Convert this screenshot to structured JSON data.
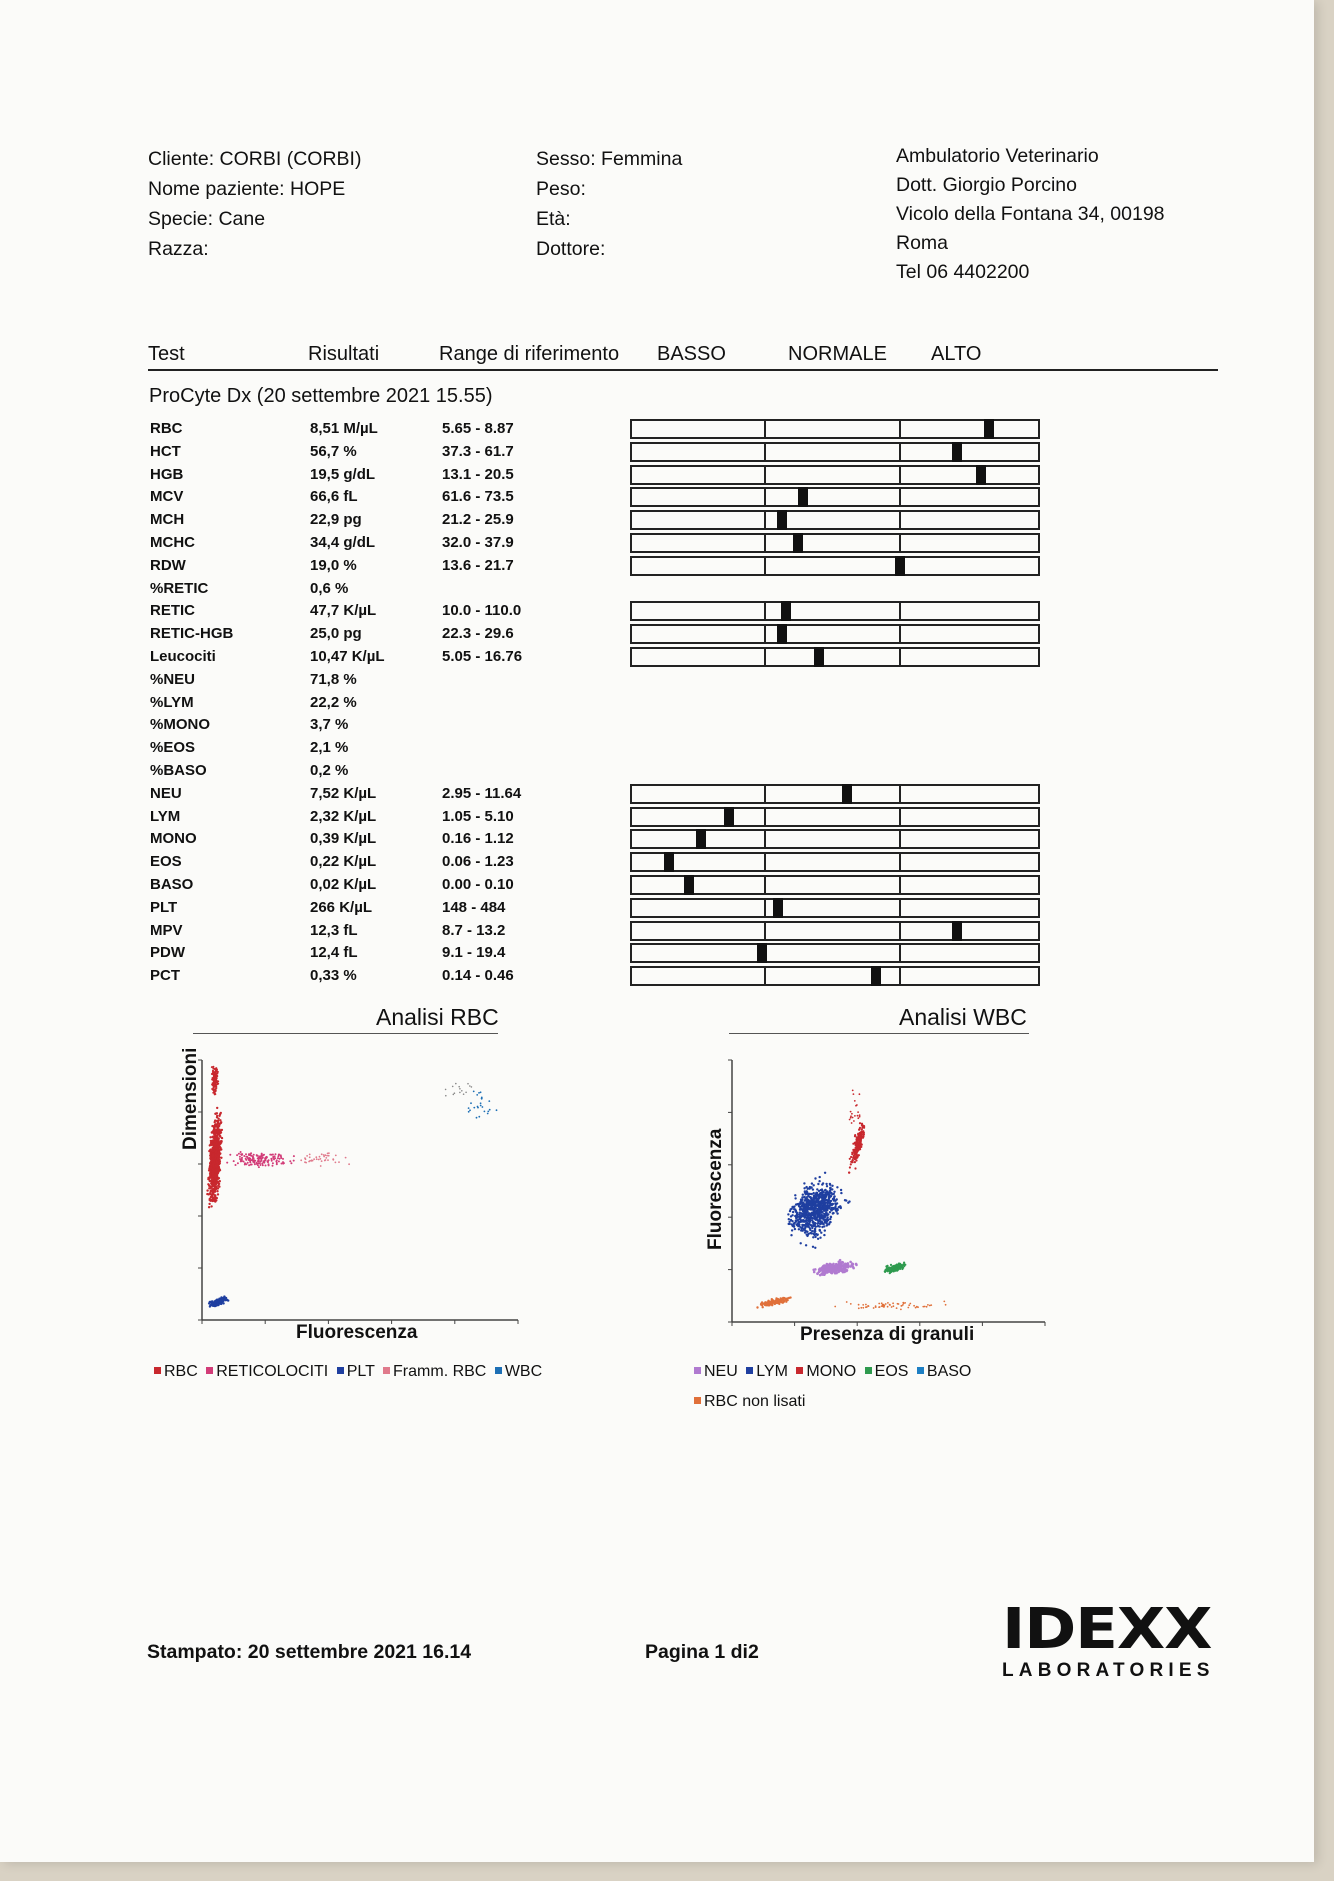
{
  "header": {
    "left": [
      "Cliente: CORBI (CORBI)",
      "Nome paziente: HOPE",
      "Specie: Cane",
      "Razza:"
    ],
    "middle": [
      "Sesso: Femmina",
      "Peso:",
      "Età:",
      "Dottore:"
    ],
    "right": [
      "Ambulatorio Veterinario",
      "Dott. Giorgio Porcino",
      "Vicolo della Fontana 34, 00198",
      "Roma",
      "Tel 06 4402200"
    ]
  },
  "table": {
    "columns": [
      "Test",
      "Risultati",
      "Range di riferimento",
      "BASSO",
      "NORMALE",
      "ALTO"
    ],
    "section_title": "ProCyte Dx (20 settembre 2021 15.55)",
    "rows": [
      {
        "test": "RBC",
        "result": "8,51 M/µL",
        "range": "5.65 - 8.87",
        "marker": 0.88
      },
      {
        "test": "HCT",
        "result": "56,7 %",
        "range": "37.3 - 61.7",
        "marker": 0.8
      },
      {
        "test": "HGB",
        "result": "19,5 g/dL",
        "range": "13.1 - 20.5",
        "marker": 0.86
      },
      {
        "test": "MCV",
        "result": "66,6 fL",
        "range": "61.6 - 73.5",
        "marker": 0.42
      },
      {
        "test": "MCH",
        "result": "22,9 pg",
        "range": "21.2 - 25.9",
        "marker": 0.37
      },
      {
        "test": "MCHC",
        "result": "34,4 g/dL",
        "range": "32.0 - 37.9",
        "marker": 0.41
      },
      {
        "test": "RDW",
        "result": "19,0 %",
        "range": "13.6 - 21.7",
        "marker": 0.66
      },
      {
        "test": "%RETIC",
        "result": "0,6 %",
        "range": "",
        "marker": null
      },
      {
        "test": "RETIC",
        "result": "47,7 K/µL",
        "range": "10.0 - 110.0",
        "marker": 0.38
      },
      {
        "test": "RETIC-HGB",
        "result": "25,0 pg",
        "range": "22.3 - 29.6",
        "marker": 0.37
      },
      {
        "test": "Leucociti",
        "result": "10,47 K/µL",
        "range": "5.05 - 16.76",
        "marker": 0.46
      },
      {
        "test": "%NEU",
        "result": "71,8 %",
        "range": "",
        "marker": null
      },
      {
        "test": "%LYM",
        "result": "22,2 %",
        "range": "",
        "marker": null
      },
      {
        "test": "%MONO",
        "result": "3,7 %",
        "range": "",
        "marker": null
      },
      {
        "test": "%EOS",
        "result": "2,1 %",
        "range": "",
        "marker": null
      },
      {
        "test": "%BASO",
        "result": "0,2 %",
        "range": "",
        "marker": null
      },
      {
        "test": "NEU",
        "result": "7,52 K/µL",
        "range": "2.95 - 11.64",
        "marker": 0.53
      },
      {
        "test": "LYM",
        "result": "2,32 K/µL",
        "range": "1.05 - 5.10",
        "marker": 0.24
      },
      {
        "test": "MONO",
        "result": "0,39 K/µL",
        "range": "0.16 - 1.12",
        "marker": 0.17
      },
      {
        "test": "EOS",
        "result": "0,22 K/µL",
        "range": "0.06 - 1.23",
        "marker": 0.09
      },
      {
        "test": "BASO",
        "result": "0,02 K/µL",
        "range": "0.00 - 0.10",
        "marker": 0.14
      },
      {
        "test": "PLT",
        "result": "266 K/µL",
        "range": "148 - 484",
        "marker": 0.36
      },
      {
        "test": "MPV",
        "result": "12,3 fL",
        "range": "8.7 - 13.2",
        "marker": 0.8
      },
      {
        "test": "PDW",
        "result": "12,4 fL",
        "range": "9.1 - 19.4",
        "marker": 0.32
      },
      {
        "test": "PCT",
        "result": "0,33 %",
        "range": "0.14 - 0.46",
        "marker": 0.6
      }
    ]
  },
  "rbc_chart": {
    "title": "Analisi RBC",
    "xlabel": "Fluorescenza",
    "ylabel": "Dimensioni",
    "legend": [
      {
        "label": "RBC",
        "color": "#c8282e"
      },
      {
        "label": "RETICOLOCITI",
        "color": "#d23c78"
      },
      {
        "label": "PLT",
        "color": "#1f3fa0"
      },
      {
        "label": "Framm. RBC",
        "color": "#e07a8c"
      },
      {
        "label": "WBC",
        "color": "#1d6fb5"
      }
    ]
  },
  "wbc_chart": {
    "title": "Analisi WBC",
    "xlabel": "Presenza di granuli",
    "ylabel": "Fluorescenza",
    "legend": [
      {
        "label": "NEU",
        "color": "#b07ad0"
      },
      {
        "label": "LYM",
        "color": "#1f3fa0"
      },
      {
        "label": "MONO",
        "color": "#c8282e"
      },
      {
        "label": "EOS",
        "color": "#2e9a4e"
      },
      {
        "label": "BASO",
        "color": "#1d7fc4"
      },
      {
        "label": "RBC non lisati",
        "color": "#e0703a"
      }
    ]
  },
  "footer": {
    "printed": "Stampato: 20 settembre 2021 16.14",
    "page": "Pagina 1 di2",
    "logo_main": "IDEXX",
    "logo_sub": "LABORATORIES",
    "logo_color": "#1e1e1e",
    "logo_accent": "#b8202a"
  }
}
